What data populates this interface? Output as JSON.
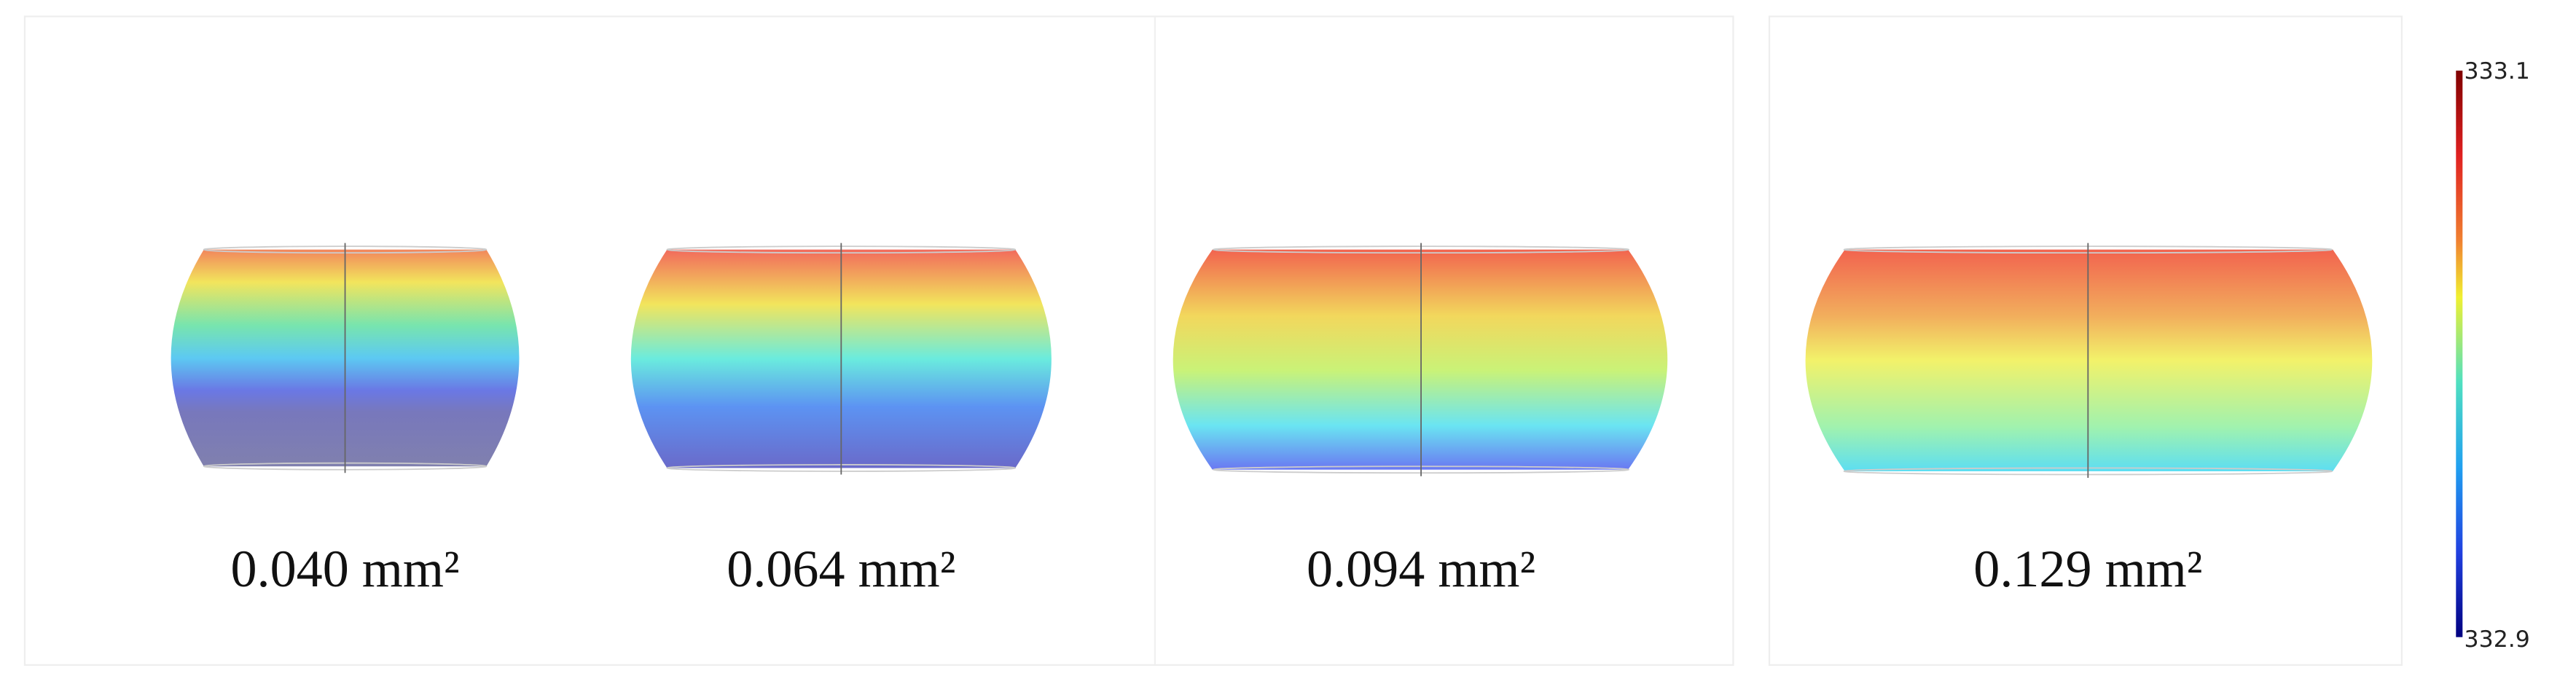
{
  "panels": [
    {
      "label": "0.040 mm²"
    },
    {
      "label": "0.064 mm²"
    },
    {
      "label": "0.094 mm²"
    },
    {
      "label": "0.129 mm²"
    }
  ],
  "colorbar": {
    "max_label": "333.1",
    "min_label": "332.9"
  }
}
